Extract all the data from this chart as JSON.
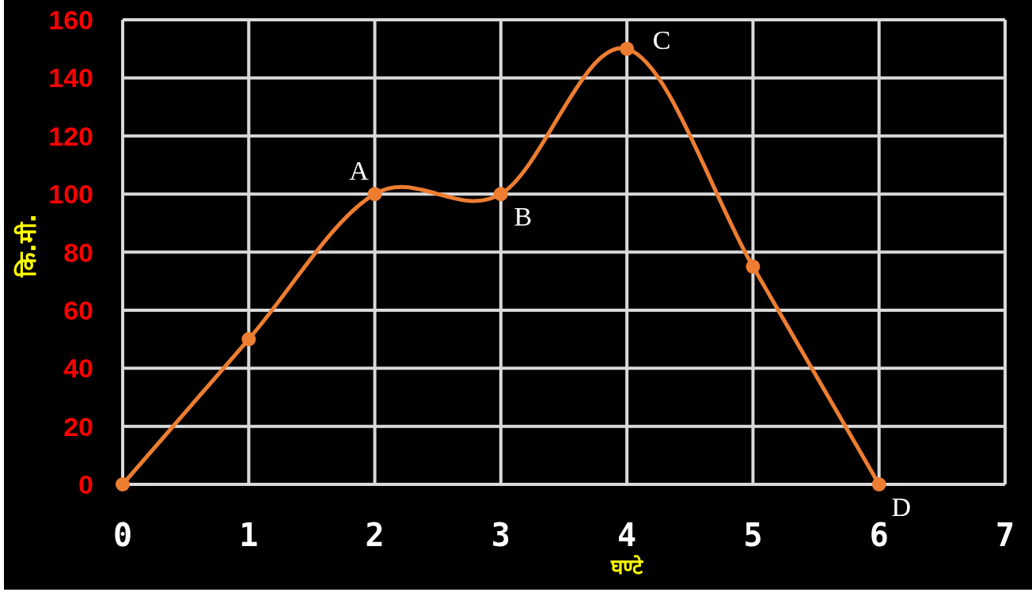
{
  "chart_data": {
    "type": "line",
    "xlabel": "घण्टे",
    "ylabel": "कि.मी.",
    "x": [
      0,
      1,
      2,
      3,
      4,
      5,
      6
    ],
    "series": [
      {
        "color": "#ed7d31",
        "values": [
          0,
          50,
          100,
          100,
          150,
          75,
          0
        ]
      }
    ],
    "xlim": [
      0,
      7
    ],
    "xticks": [
      0,
      1,
      2,
      3,
      4,
      5,
      6,
      7
    ],
    "ylim": [
      0,
      160
    ],
    "yticks": [
      0,
      20,
      40,
      60,
      80,
      100,
      120,
      140,
      160
    ],
    "grid": true,
    "marker": "circle",
    "annotations": [
      {
        "text": "A",
        "x": 2,
        "y": 100
      },
      {
        "text": "B",
        "x": 3,
        "y": 100
      },
      {
        "text": "C",
        "x": 4,
        "y": 150
      },
      {
        "text": "D",
        "x": 6,
        "y": 0
      }
    ]
  }
}
